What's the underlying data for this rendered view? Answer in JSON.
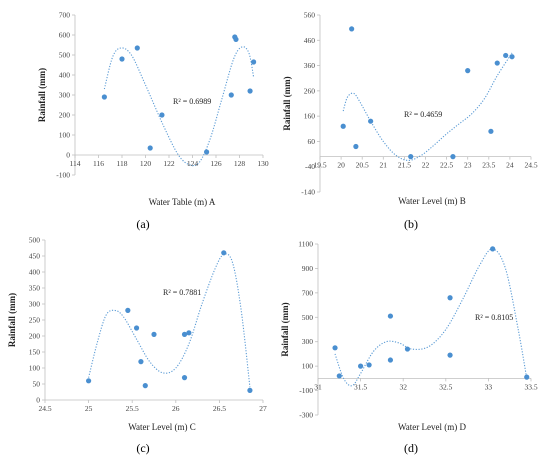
{
  "chart_data": [
    {
      "type": "scatter",
      "panel_label": "(a)",
      "xlabel": "Water Table (m) A",
      "ylabel": "Rainfall (mm)",
      "r2_label": "R² = 0.6989",
      "xlim": [
        114,
        130
      ],
      "ylim": [
        -100,
        700
      ],
      "xticks": [
        114,
        116,
        118,
        120,
        122,
        124,
        126,
        128,
        130
      ],
      "yticks": [
        -100,
        0,
        100,
        200,
        300,
        400,
        500,
        600,
        700
      ],
      "point_color": "#4a8fd0",
      "points": [
        {
          "x": 116.5,
          "y": 290
        },
        {
          "x": 118.0,
          "y": 480
        },
        {
          "x": 119.3,
          "y": 535
        },
        {
          "x": 120.4,
          "y": 35
        },
        {
          "x": 121.4,
          "y": 200
        },
        {
          "x": 125.2,
          "y": 15
        },
        {
          "x": 127.3,
          "y": 300
        },
        {
          "x": 127.6,
          "y": 590
        },
        {
          "x": 127.7,
          "y": 578
        },
        {
          "x": 128.9,
          "y": 320
        },
        {
          "x": 129.2,
          "y": 465
        }
      ],
      "trendline": [
        {
          "x": 116.5,
          "y": 330
        },
        {
          "x": 117.2,
          "y": 490
        },
        {
          "x": 117.9,
          "y": 535
        },
        {
          "x": 118.8,
          "y": 500
        },
        {
          "x": 120.0,
          "y": 350
        },
        {
          "x": 121.5,
          "y": 150
        },
        {
          "x": 122.8,
          "y": 0
        },
        {
          "x": 123.8,
          "y": -50
        },
        {
          "x": 124.6,
          "y": -35
        },
        {
          "x": 125.5,
          "y": 80
        },
        {
          "x": 126.5,
          "y": 280
        },
        {
          "x": 127.5,
          "y": 480
        },
        {
          "x": 128.2,
          "y": 540
        },
        {
          "x": 128.8,
          "y": 510
        },
        {
          "x": 129.2,
          "y": 390
        }
      ]
    },
    {
      "type": "scatter",
      "panel_label": "(b)",
      "xlabel": "Water Level (m) B",
      "ylabel": "Rainfall (mm)",
      "r2_label": "R² = 0.4659",
      "xlim": [
        19.5,
        24.5
      ],
      "ylim": [
        -140,
        560
      ],
      "xticks": [
        19.5,
        20,
        20.5,
        21,
        21.5,
        22,
        22.5,
        23,
        23.5,
        24,
        24.5
      ],
      "yticks": [
        -140,
        -40,
        60,
        160,
        260,
        360,
        460,
        560
      ],
      "point_color": "#4a8fd0",
      "points": [
        {
          "x": 20.05,
          "y": 120
        },
        {
          "x": 20.25,
          "y": 505
        },
        {
          "x": 20.35,
          "y": 40
        },
        {
          "x": 20.7,
          "y": 140
        },
        {
          "x": 21.65,
          "y": 0
        },
        {
          "x": 22.65,
          "y": 0
        },
        {
          "x": 23.0,
          "y": 340
        },
        {
          "x": 23.55,
          "y": 100
        },
        {
          "x": 23.7,
          "y": 370
        },
        {
          "x": 23.9,
          "y": 400
        },
        {
          "x": 24.05,
          "y": 395
        }
      ],
      "trendline": [
        {
          "x": 20.05,
          "y": 180
        },
        {
          "x": 20.15,
          "y": 235
        },
        {
          "x": 20.3,
          "y": 250
        },
        {
          "x": 20.45,
          "y": 215
        },
        {
          "x": 20.7,
          "y": 140
        },
        {
          "x": 21.0,
          "y": 60
        },
        {
          "x": 21.3,
          "y": 5
        },
        {
          "x": 21.6,
          "y": -15
        },
        {
          "x": 21.9,
          "y": 5
        },
        {
          "x": 22.2,
          "y": 45
        },
        {
          "x": 22.5,
          "y": 90
        },
        {
          "x": 22.8,
          "y": 130
        },
        {
          "x": 23.1,
          "y": 170
        },
        {
          "x": 23.4,
          "y": 230
        },
        {
          "x": 23.7,
          "y": 320
        },
        {
          "x": 24.05,
          "y": 410
        }
      ]
    },
    {
      "type": "scatter",
      "panel_label": "(c)",
      "xlabel": "Water Level (m) C",
      "ylabel": "Rainfall (mm)",
      "r2_label": "R² = 0.7881",
      "xlim": [
        24.5,
        27
      ],
      "ylim": [
        0,
        500
      ],
      "xticks": [
        24.5,
        25,
        25.5,
        26,
        26.5,
        27
      ],
      "yticks": [
        0,
        50,
        100,
        150,
        200,
        250,
        300,
        350,
        400,
        450,
        500
      ],
      "point_color": "#4a8fd0",
      "points": [
        {
          "x": 25.0,
          "y": 60
        },
        {
          "x": 25.45,
          "y": 280
        },
        {
          "x": 25.55,
          "y": 225
        },
        {
          "x": 25.6,
          "y": 120
        },
        {
          "x": 25.65,
          "y": 45
        },
        {
          "x": 25.75,
          "y": 205
        },
        {
          "x": 26.1,
          "y": 70
        },
        {
          "x": 26.1,
          "y": 205
        },
        {
          "x": 26.15,
          "y": 210
        },
        {
          "x": 26.55,
          "y": 460
        },
        {
          "x": 26.85,
          "y": 30
        }
      ],
      "trendline": [
        {
          "x": 25.0,
          "y": 70
        },
        {
          "x": 25.1,
          "y": 180
        },
        {
          "x": 25.2,
          "y": 265
        },
        {
          "x": 25.3,
          "y": 280
        },
        {
          "x": 25.4,
          "y": 260
        },
        {
          "x": 25.55,
          "y": 190
        },
        {
          "x": 25.7,
          "y": 120
        },
        {
          "x": 25.85,
          "y": 85
        },
        {
          "x": 26.0,
          "y": 100
        },
        {
          "x": 26.15,
          "y": 175
        },
        {
          "x": 26.3,
          "y": 300
        },
        {
          "x": 26.45,
          "y": 410
        },
        {
          "x": 26.55,
          "y": 455
        },
        {
          "x": 26.65,
          "y": 430
        },
        {
          "x": 26.75,
          "y": 280
        },
        {
          "x": 26.85,
          "y": 40
        }
      ]
    },
    {
      "type": "scatter",
      "panel_label": "(d)",
      "xlabel": "Water Level (m) D",
      "ylabel": "Rainfall (mm)",
      "r2_label": "R² = 0.8105",
      "xlim": [
        31,
        33.5
      ],
      "ylim": [
        -300,
        1100
      ],
      "xticks": [
        31,
        31.5,
        32,
        32.5,
        33,
        33.5
      ],
      "yticks": [
        -300,
        -100,
        100,
        300,
        500,
        700,
        900,
        1100
      ],
      "point_color": "#4a8fd0",
      "points": [
        {
          "x": 31.2,
          "y": 250
        },
        {
          "x": 31.25,
          "y": 20
        },
        {
          "x": 31.5,
          "y": 100
        },
        {
          "x": 31.6,
          "y": 110
        },
        {
          "x": 31.85,
          "y": 510
        },
        {
          "x": 31.85,
          "y": 150
        },
        {
          "x": 32.05,
          "y": 240
        },
        {
          "x": 32.55,
          "y": 660
        },
        {
          "x": 32.55,
          "y": 190
        },
        {
          "x": 33.05,
          "y": 1060
        },
        {
          "x": 33.45,
          "y": 10
        }
      ],
      "trendline": [
        {
          "x": 31.2,
          "y": 200
        },
        {
          "x": 31.3,
          "y": 0
        },
        {
          "x": 31.4,
          "y": -60
        },
        {
          "x": 31.5,
          "y": 40
        },
        {
          "x": 31.65,
          "y": 220
        },
        {
          "x": 31.8,
          "y": 300
        },
        {
          "x": 31.95,
          "y": 290
        },
        {
          "x": 32.1,
          "y": 240
        },
        {
          "x": 32.3,
          "y": 260
        },
        {
          "x": 32.5,
          "y": 400
        },
        {
          "x": 32.7,
          "y": 650
        },
        {
          "x": 32.9,
          "y": 930
        },
        {
          "x": 33.05,
          "y": 1060
        },
        {
          "x": 33.2,
          "y": 900
        },
        {
          "x": 33.35,
          "y": 400
        },
        {
          "x": 33.45,
          "y": 0
        }
      ]
    }
  ]
}
